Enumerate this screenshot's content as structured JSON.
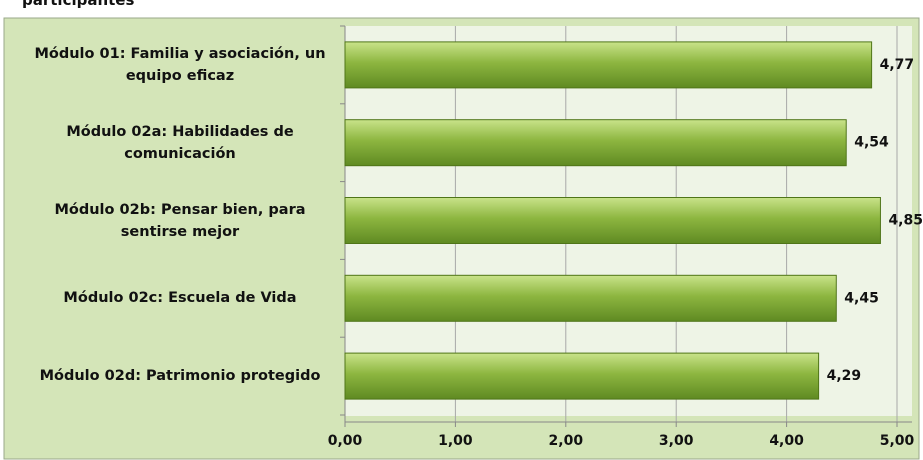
{
  "chart_data": {
    "type": "bar",
    "orientation": "horizontal",
    "title": "participantes",
    "categories": [
      "Módulo 01: Familia y asociación, un equipo eficaz",
      "Módulo 02a: Habilidades de comunicación",
      "Módulo 02b: Pensar bien, para sentirse mejor",
      "Módulo 02c: Escuela de Vida",
      "Módulo 02d: Patrimonio protegido"
    ],
    "values": [
      4.77,
      4.54,
      4.85,
      4.45,
      4.29
    ],
    "value_labels": [
      "4,77",
      "4,54",
      "4,85",
      "4,45",
      "4,29"
    ],
    "color": "#8db640",
    "xlim": [
      0,
      5
    ],
    "xticks": [
      {
        "value": 0,
        "label": "0,00"
      },
      {
        "value": 1,
        "label": "1,00"
      },
      {
        "value": 2,
        "label": "2,00"
      },
      {
        "value": 3,
        "label": "3,00"
      },
      {
        "value": 4,
        "label": "4,00"
      },
      {
        "value": 5,
        "label": "5,00"
      }
    ],
    "grid": true
  }
}
